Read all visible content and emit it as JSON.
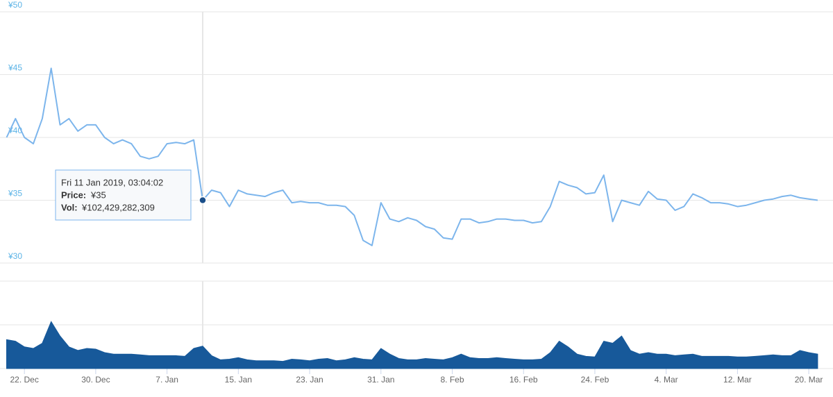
{
  "chart_data": {
    "type": "line",
    "categories": [
      "20 Dec",
      "21 Dec",
      "22 Dec",
      "23 Dec",
      "24 Dec",
      "25 Dec",
      "26 Dec",
      "27 Dec",
      "28 Dec",
      "29 Dec",
      "30 Dec",
      "31 Dec",
      "1 Jan",
      "2 Jan",
      "3 Jan",
      "4 Jan",
      "5 Jan",
      "6 Jan",
      "7 Jan",
      "8 Jan",
      "9 Jan",
      "10 Jan",
      "11 Jan",
      "12 Jan",
      "13 Jan",
      "14 Jan",
      "15 Jan",
      "16 Jan",
      "17 Jan",
      "18 Jan",
      "19 Jan",
      "20 Jan",
      "21 Jan",
      "22 Jan",
      "23 Jan",
      "24 Jan",
      "25 Jan",
      "26 Jan",
      "27 Jan",
      "28 Jan",
      "29 Jan",
      "30 Jan",
      "31 Jan",
      "1 Feb",
      "2 Feb",
      "3 Feb",
      "4 Feb",
      "5 Feb",
      "6 Feb",
      "7 Feb",
      "8 Feb",
      "9 Feb",
      "10 Feb",
      "11 Feb",
      "12 Feb",
      "13 Feb",
      "14 Feb",
      "15 Feb",
      "16 Feb",
      "17 Feb",
      "18 Feb",
      "19 Feb",
      "20 Feb",
      "21 Feb",
      "22 Feb",
      "23 Feb",
      "24 Feb",
      "25 Feb",
      "26 Feb",
      "27 Feb",
      "28 Feb",
      "1 Mar",
      "2 Mar",
      "3 Mar",
      "4 Mar",
      "5 Mar",
      "6 Mar",
      "7 Mar",
      "8 Mar",
      "9 Mar",
      "10 Mar",
      "11 Mar",
      "12 Mar",
      "13 Mar",
      "14 Mar",
      "15 Mar",
      "16 Mar",
      "17 Mar",
      "18 Mar",
      "19 Mar",
      "20 Mar",
      "21 Mar"
    ],
    "series": [
      {
        "name": "Price",
        "color": "#7cb5ec",
        "values": [
          40,
          41.5,
          40,
          39.5,
          41.5,
          45.5,
          41,
          41.5,
          40.5,
          41,
          41,
          40,
          39.5,
          39.8,
          39.5,
          38.5,
          38.3,
          38.5,
          39.5,
          39.6,
          39.5,
          39.8,
          35,
          35.8,
          35.6,
          34.5,
          35.8,
          35.5,
          35.4,
          35.3,
          35.6,
          35.8,
          34.8,
          34.9,
          34.8,
          34.8,
          34.6,
          34.6,
          34.5,
          33.8,
          31.8,
          31.4,
          34.8,
          33.5,
          33.3,
          33.6,
          33.4,
          32.9,
          32.7,
          32,
          31.9,
          33.5,
          33.5,
          33.2,
          33.3,
          33.5,
          33.5,
          33.4,
          33.4,
          33.2,
          33.3,
          34.5,
          36.5,
          36.2,
          36,
          35.5,
          35.6,
          37,
          33.3,
          35,
          34.8,
          34.6,
          35.7,
          35.1,
          35,
          34.2,
          34.5,
          35.5,
          35.2,
          34.8,
          34.8,
          34.7,
          34.5,
          34.6,
          34.8,
          35,
          35.1,
          35.3,
          35.4,
          35.2,
          35.1,
          35
        ]
      },
      {
        "name": "Vol",
        "color": "#17599a",
        "axis": "y2",
        "values": [
          132000000000,
          125000000000,
          99000000000,
          92000000000,
          116000000000,
          215000000000,
          149000000000,
          99000000000,
          83000000000,
          92000000000,
          89000000000,
          73000000000,
          66000000000,
          66000000000,
          66000000000,
          63000000000,
          59000000000,
          59000000000,
          59000000000,
          59000000000,
          56000000000,
          92000000000,
          102429282309,
          59000000000,
          40000000000,
          43000000000,
          50000000000,
          40000000000,
          36000000000,
          36000000000,
          36000000000,
          33000000000,
          43000000000,
          40000000000,
          36000000000,
          43000000000,
          46000000000,
          36000000000,
          40000000000,
          50000000000,
          43000000000,
          40000000000,
          92000000000,
          66000000000,
          46000000000,
          40000000000,
          40000000000,
          46000000000,
          43000000000,
          40000000000,
          50000000000,
          66000000000,
          50000000000,
          46000000000,
          46000000000,
          50000000000,
          46000000000,
          43000000000,
          40000000000,
          40000000000,
          43000000000,
          73000000000,
          125000000000,
          99000000000,
          66000000000,
          56000000000,
          53000000000,
          125000000000,
          116000000000,
          149000000000,
          83000000000,
          66000000000,
          73000000000,
          66000000000,
          66000000000,
          59000000000,
          63000000000,
          66000000000,
          56000000000,
          56000000000,
          56000000000,
          56000000000,
          53000000000,
          53000000000,
          56000000000,
          59000000000,
          63000000000,
          59000000000,
          59000000000,
          83000000000,
          73000000000,
          66000000000
        ]
      }
    ],
    "ylim": [
      30,
      50
    ],
    "yticks": [
      {
        "value": 30,
        "label": "¥30"
      },
      {
        "value": 35,
        "label": "¥35"
      },
      {
        "value": 40,
        "label": "¥40"
      },
      {
        "value": 45,
        "label": "¥45"
      },
      {
        "value": 50,
        "label": "¥50"
      }
    ],
    "y2lim": [
      0,
      400000000000
    ],
    "y2ticks": [
      0,
      200000000000,
      400000000000
    ],
    "xticks": [
      {
        "value": "22 Dec",
        "label": "22. Dec"
      },
      {
        "value": "30 Dec",
        "label": "30. Dec"
      },
      {
        "value": "7 Jan",
        "label": "7. Jan"
      },
      {
        "value": "15 Jan",
        "label": "15. Jan"
      },
      {
        "value": "23 Jan",
        "label": "23. Jan"
      },
      {
        "value": "31 Jan",
        "label": "31. Jan"
      },
      {
        "value": "8 Feb",
        "label": "8. Feb"
      },
      {
        "value": "16 Feb",
        "label": "16. Feb"
      },
      {
        "value": "24 Feb",
        "label": "24. Feb"
      },
      {
        "value": "4 Mar",
        "label": "4. Mar"
      },
      {
        "value": "12 Mar",
        "label": "12. Mar"
      },
      {
        "value": "20 Mar",
        "label": "20. Mar"
      }
    ],
    "grid": true,
    "tooltip": {
      "title": "Fri 11 Jan 2019, 03:04:02",
      "rows": [
        {
          "label": "Price:",
          "value": 35,
          "value_label": "¥35"
        },
        {
          "label": "Vol:",
          "value": 102429282309,
          "value_label": "¥102,429,282,309"
        }
      ]
    }
  }
}
